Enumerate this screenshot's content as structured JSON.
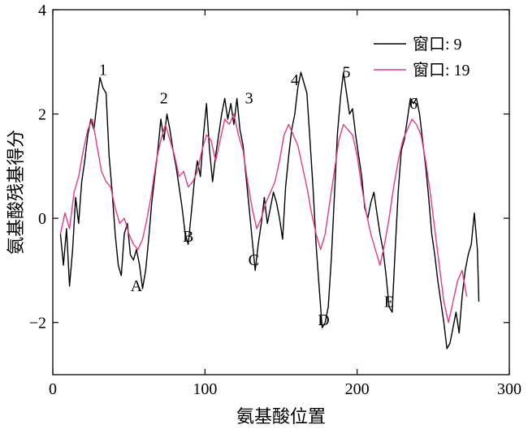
{
  "chart_data": {
    "type": "line",
    "xlabel": "氨基酸位置",
    "ylabel": "氨基酸残基得分",
    "xlim": [
      0,
      300
    ],
    "ylim": [
      -3,
      4
    ],
    "xticks": [
      0,
      100,
      200,
      300
    ],
    "yticks": [
      -2,
      0,
      2,
      4
    ],
    "ytick_labels": [
      "−2",
      "0",
      "2",
      "4"
    ],
    "grid": false,
    "legend_position": "top-right",
    "series": [
      {
        "name": "窗口: 9",
        "color": "#000000",
        "points": [
          [
            5,
            -0.3
          ],
          [
            7,
            -0.9
          ],
          [
            9,
            -0.2
          ],
          [
            11,
            -1.3
          ],
          [
            13,
            -0.6
          ],
          [
            15,
            0.4
          ],
          [
            17,
            -0.1
          ],
          [
            19,
            0.7
          ],
          [
            21,
            1.1
          ],
          [
            23,
            1.6
          ],
          [
            25,
            1.9
          ],
          [
            27,
            1.7
          ],
          [
            29,
            2.2
          ],
          [
            31,
            2.7
          ],
          [
            33,
            2.5
          ],
          [
            35,
            2.4
          ],
          [
            37,
            1.2
          ],
          [
            39,
            0.5
          ],
          [
            41,
            -0.3
          ],
          [
            43,
            -0.9
          ],
          [
            45,
            -1.1
          ],
          [
            47,
            -0.3
          ],
          [
            49,
            -0.1
          ],
          [
            51,
            -0.7
          ],
          [
            53,
            -0.8
          ],
          [
            55,
            -0.6
          ],
          [
            57,
            -0.9
          ],
          [
            59,
            -1.35
          ],
          [
            61,
            -1.0
          ],
          [
            63,
            -0.4
          ],
          [
            65,
            0.3
          ],
          [
            67,
            0.8
          ],
          [
            69,
            1.3
          ],
          [
            71,
            1.9
          ],
          [
            73,
            1.5
          ],
          [
            75,
            2.0
          ],
          [
            77,
            1.7
          ],
          [
            79,
            1.3
          ],
          [
            81,
            1.0
          ],
          [
            83,
            0.6
          ],
          [
            85,
            0.2
          ],
          [
            87,
            -0.3
          ],
          [
            89,
            -0.5
          ],
          [
            91,
            0.1
          ],
          [
            93,
            0.7
          ],
          [
            95,
            1.1
          ],
          [
            97,
            0.8
          ],
          [
            99,
            1.6
          ],
          [
            101,
            2.2
          ],
          [
            103,
            1.3
          ],
          [
            105,
            0.7
          ],
          [
            107,
            1.2
          ],
          [
            109,
            1.6
          ],
          [
            111,
            2.0
          ],
          [
            113,
            2.3
          ],
          [
            115,
            1.9
          ],
          [
            117,
            2.2
          ],
          [
            119,
            1.8
          ],
          [
            121,
            2.3
          ],
          [
            123,
            1.7
          ],
          [
            125,
            1.4
          ],
          [
            127,
            0.8
          ],
          [
            129,
            0.2
          ],
          [
            131,
            -0.4
          ],
          [
            133,
            -1.0
          ],
          [
            135,
            -0.5
          ],
          [
            137,
            -0.1
          ],
          [
            139,
            0.4
          ],
          [
            141,
            -0.1
          ],
          [
            143,
            0.2
          ],
          [
            145,
            0.5
          ],
          [
            147,
            0.3
          ],
          [
            149,
            0.0
          ],
          [
            151,
            -0.4
          ],
          [
            153,
            0.6
          ],
          [
            155,
            1.2
          ],
          [
            157,
            1.7
          ],
          [
            159,
            2.0
          ],
          [
            161,
            2.5
          ],
          [
            163,
            2.8
          ],
          [
            165,
            2.6
          ],
          [
            167,
            2.4
          ],
          [
            169,
            1.5
          ],
          [
            171,
            0.6
          ],
          [
            173,
            -0.5
          ],
          [
            175,
            -1.3
          ],
          [
            177,
            -2.1
          ],
          [
            179,
            -2.0
          ],
          [
            181,
            -1.7
          ],
          [
            183,
            -0.8
          ],
          [
            185,
            0.4
          ],
          [
            187,
            1.6
          ],
          [
            189,
            2.3
          ],
          [
            191,
            2.8
          ],
          [
            193,
            2.4
          ],
          [
            195,
            2.0
          ],
          [
            197,
            2.1
          ],
          [
            199,
            1.6
          ],
          [
            201,
            1.2
          ],
          [
            203,
            0.8
          ],
          [
            205,
            0.2
          ],
          [
            207,
            0.0
          ],
          [
            209,
            0.3
          ],
          [
            211,
            0.5
          ],
          [
            213,
            0.1
          ],
          [
            215,
            -0.3
          ],
          [
            217,
            -0.6
          ],
          [
            219,
            -1.1
          ],
          [
            221,
            -1.7
          ],
          [
            223,
            -1.8
          ],
          [
            225,
            -0.6
          ],
          [
            227,
            0.5
          ],
          [
            229,
            1.3
          ],
          [
            231,
            1.5
          ],
          [
            233,
            1.9
          ],
          [
            235,
            2.3
          ],
          [
            237,
            2.2
          ],
          [
            239,
            2.3
          ],
          [
            241,
            2.0
          ],
          [
            243,
            1.5
          ],
          [
            245,
            1.0
          ],
          [
            247,
            0.4
          ],
          [
            249,
            -0.3
          ],
          [
            251,
            -0.7
          ],
          [
            253,
            -1.2
          ],
          [
            255,
            -1.6
          ],
          [
            257,
            -2.0
          ],
          [
            259,
            -2.5
          ],
          [
            261,
            -2.4
          ],
          [
            263,
            -2.1
          ],
          [
            265,
            -1.8
          ],
          [
            267,
            -2.2
          ],
          [
            269,
            -1.5
          ],
          [
            271,
            -1.0
          ],
          [
            273,
            -0.7
          ],
          [
            275,
            -0.5
          ],
          [
            277,
            0.1
          ],
          [
            279,
            -0.6
          ],
          [
            280,
            -1.6
          ]
        ]
      },
      {
        "name": "窗口: 19",
        "color": "#e8388a",
        "points": [
          [
            5,
            -0.3
          ],
          [
            8,
            0.1
          ],
          [
            11,
            -0.2
          ],
          [
            14,
            0.5
          ],
          [
            17,
            0.8
          ],
          [
            20,
            1.3
          ],
          [
            23,
            1.7
          ],
          [
            26,
            1.9
          ],
          [
            29,
            1.4
          ],
          [
            32,
            0.9
          ],
          [
            35,
            0.7
          ],
          [
            38,
            0.6
          ],
          [
            41,
            0.2
          ],
          [
            44,
            -0.1
          ],
          [
            47,
            0.0
          ],
          [
            50,
            -0.3
          ],
          [
            53,
            -0.5
          ],
          [
            56,
            -0.6
          ],
          [
            59,
            -0.4
          ],
          [
            62,
            0.0
          ],
          [
            65,
            0.5
          ],
          [
            68,
            1.1
          ],
          [
            71,
            1.5
          ],
          [
            74,
            1.8
          ],
          [
            77,
            1.5
          ],
          [
            80,
            1.2
          ],
          [
            83,
            0.8
          ],
          [
            86,
            0.9
          ],
          [
            89,
            0.6
          ],
          [
            92,
            0.7
          ],
          [
            95,
            0.9
          ],
          [
            98,
            1.3
          ],
          [
            101,
            1.6
          ],
          [
            104,
            1.5
          ],
          [
            107,
            1.1
          ],
          [
            110,
            1.5
          ],
          [
            113,
            1.9
          ],
          [
            116,
            1.8
          ],
          [
            119,
            2.0
          ],
          [
            122,
            1.6
          ],
          [
            125,
            1.3
          ],
          [
            128,
            0.7
          ],
          [
            131,
            0.2
          ],
          [
            134,
            -0.2
          ],
          [
            137,
            0.0
          ],
          [
            140,
            0.3
          ],
          [
            143,
            0.5
          ],
          [
            146,
            0.7
          ],
          [
            149,
            1.1
          ],
          [
            152,
            1.6
          ],
          [
            155,
            1.8
          ],
          [
            158,
            1.6
          ],
          [
            161,
            1.4
          ],
          [
            164,
            1.0
          ],
          [
            167,
            0.6
          ],
          [
            170,
            0.1
          ],
          [
            173,
            -0.3
          ],
          [
            176,
            -0.6
          ],
          [
            179,
            -0.3
          ],
          [
            182,
            0.3
          ],
          [
            185,
            0.9
          ],
          [
            188,
            1.5
          ],
          [
            191,
            1.8
          ],
          [
            194,
            1.7
          ],
          [
            197,
            1.6
          ],
          [
            200,
            1.2
          ],
          [
            203,
            0.6
          ],
          [
            206,
            0.1
          ],
          [
            209,
            -0.3
          ],
          [
            212,
            -0.6
          ],
          [
            215,
            -0.9
          ],
          [
            218,
            -0.5
          ],
          [
            221,
            0.0
          ],
          [
            224,
            0.6
          ],
          [
            227,
            1.1
          ],
          [
            230,
            1.5
          ],
          [
            233,
            1.7
          ],
          [
            236,
            1.9
          ],
          [
            239,
            1.8
          ],
          [
            242,
            1.6
          ],
          [
            245,
            1.1
          ],
          [
            248,
            0.5
          ],
          [
            251,
            -0.2
          ],
          [
            254,
            -0.9
          ],
          [
            257,
            -1.6
          ],
          [
            260,
            -2.0
          ],
          [
            263,
            -1.6
          ],
          [
            266,
            -1.2
          ],
          [
            269,
            -1.0
          ],
          [
            272,
            -1.5
          ]
        ]
      }
    ],
    "annotations": [
      {
        "text": "1",
        "x": 33,
        "y": 2.75
      },
      {
        "text": "2",
        "x": 73,
        "y": 2.2
      },
      {
        "text": "3",
        "x": 129,
        "y": 2.2
      },
      {
        "text": "4",
        "x": 159,
        "y": 2.55
      },
      {
        "text": "5",
        "x": 193,
        "y": 2.7
      },
      {
        "text": "6",
        "x": 237,
        "y": 2.1
      },
      {
        "text": "A",
        "x": 55,
        "y": -1.4
      },
      {
        "text": "B",
        "x": 89,
        "y": -0.45
      },
      {
        "text": "C",
        "x": 132,
        "y": -0.9
      },
      {
        "text": "D",
        "x": 178,
        "y": -2.05
      },
      {
        "text": "E",
        "x": 221,
        "y": -1.7
      }
    ]
  }
}
